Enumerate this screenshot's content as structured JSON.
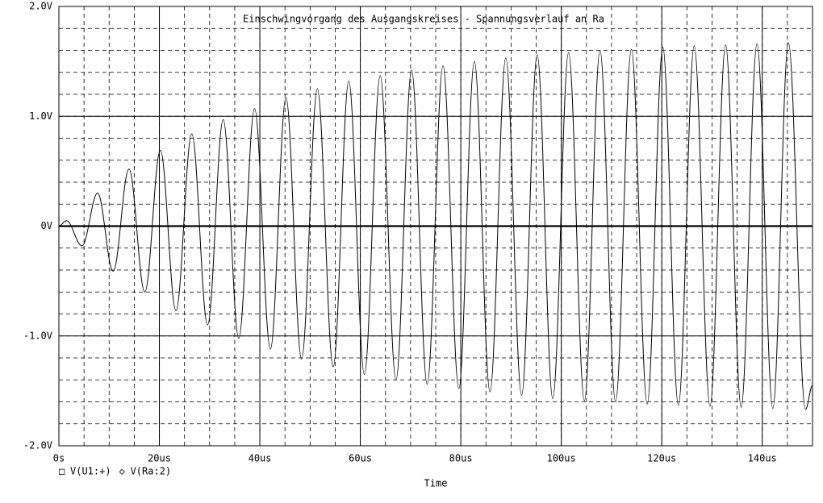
{
  "chart_data": {
    "type": "line",
    "title": "Einschwingvorgang des Ausgangskreises - Spannungsverlauf an Ra",
    "x_label": "Time",
    "xlim": [
      0,
      150
    ],
    "ylim": [
      -2,
      2
    ],
    "xticks": [
      {
        "value": 0,
        "label": "0s"
      },
      {
        "value": 20,
        "label": "20us"
      },
      {
        "value": 40,
        "label": "40us"
      },
      {
        "value": 60,
        "label": "60us"
      },
      {
        "value": 80,
        "label": "80us"
      },
      {
        "value": 100,
        "label": "100us"
      },
      {
        "value": 120,
        "label": "120us"
      },
      {
        "value": 140,
        "label": "140us"
      }
    ],
    "yticks": [
      {
        "value": -2,
        "label": "-2.0V"
      },
      {
        "value": -1,
        "label": "-1.0V"
      },
      {
        "value": 0,
        "label": "0V"
      },
      {
        "value": 1,
        "label": "1.0V"
      },
      {
        "value": 2,
        "label": "2.0V"
      }
    ],
    "minor_grid": {
      "x_step": 5,
      "y_step": 0.2
    },
    "series": [
      {
        "name": "V(U1:+)",
        "marker": "□",
        "color": "#000000",
        "width": 2.2,
        "x": [
          0,
          150
        ],
        "values": [
          0,
          0
        ]
      },
      {
        "name": "V(Ra:2)",
        "marker": "◇",
        "color": "#000000",
        "width": 1,
        "x": [
          0,
          1.5,
          4.6,
          7.7,
          10.8,
          13.95,
          17.1,
          20.2,
          23.3,
          26.45,
          29.6,
          32.7,
          35.8,
          38.95,
          42.1,
          45.2,
          48.3,
          51.45,
          54.6,
          57.7,
          60.8,
          63.95,
          67.1,
          70.2,
          73.3,
          76.45,
          79.6,
          82.7,
          85.8,
          88.95,
          92.1,
          95.2,
          98.3,
          101.45,
          104.6,
          107.7,
          110.8,
          113.95,
          117.1,
          120.2,
          123.3,
          126.45,
          129.6,
          132.7,
          135.8,
          138.95,
          142.1,
          145.2,
          148.6,
          150
        ],
        "values": [
          0,
          0.05,
          -0.18,
          0.3,
          -0.41,
          0.52,
          -0.6,
          0.69,
          -0.77,
          0.84,
          -0.9,
          0.97,
          -1.02,
          1.07,
          -1.12,
          1.17,
          -1.21,
          1.25,
          -1.28,
          1.32,
          -1.35,
          1.37,
          -1.4,
          1.42,
          -1.44,
          1.46,
          -1.48,
          1.5,
          -1.51,
          1.53,
          -1.54,
          1.56,
          -1.57,
          1.58,
          -1.59,
          1.6,
          -1.6,
          1.61,
          -1.62,
          1.63,
          -1.63,
          1.64,
          -1.64,
          1.65,
          -1.65,
          1.66,
          -1.66,
          1.67,
          -1.67,
          -1.45
        ]
      }
    ]
  }
}
